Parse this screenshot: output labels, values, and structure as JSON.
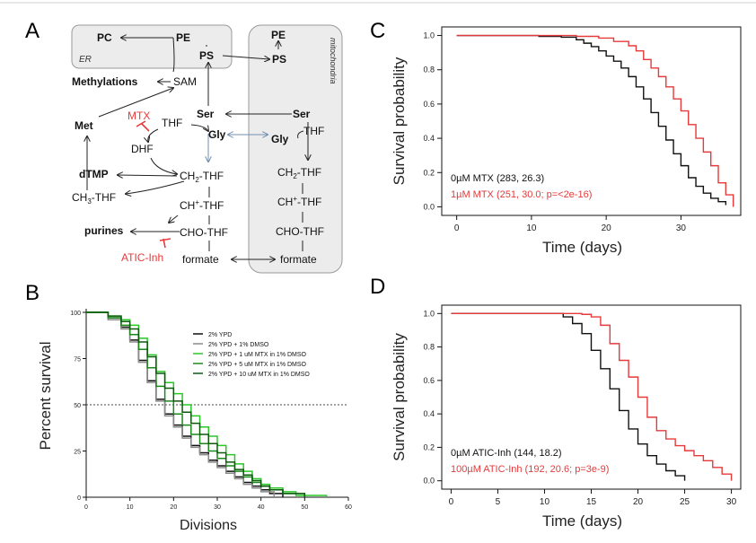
{
  "colors": {
    "black": "#111111",
    "red": "#e53a3a",
    "grey": "#8a8a8a",
    "g1": "#28c828",
    "g2": "#1a8a1a",
    "g3": "#0d5a0d",
    "box": "#ececec",
    "boxStroke": "#9a9a9a",
    "arrow": "#222222",
    "blue": "#6f8fb0"
  },
  "panels": {
    "a": "A",
    "b": "B",
    "c": "C",
    "d": "D"
  },
  "pathway": {
    "er_label": "ER",
    "mito_label": "mitochondria",
    "pc": "PC",
    "pe_er": "PE",
    "ps_er": "PS",
    "pe_mito": "PE",
    "ps_mito": "PS",
    "methylations": "Methylations",
    "sam": "SAM",
    "met": "Met",
    "mtx": "MTX",
    "thf": "THF",
    "dhf": "DHF",
    "ser": "Ser",
    "ser_mito": "Ser",
    "gly": "Gly",
    "gly_mito": "Gly",
    "thf_mito": "THF",
    "dtmp": "dTMP",
    "ch2thf_main": "CH",
    "ch2thf_sub": "2",
    "ch2thf_tail": "-THF",
    "ch3thf_main": "CH",
    "ch3thf_sub": "3",
    "ch3thf_tail": "-THF",
    "chplus_main": "CH",
    "chplus_sup": "+",
    "chplus_tail": "-THF",
    "chothf": "CHO-THF",
    "purines": "purines",
    "aticinh": "ATIC-Inh",
    "formate": "formate",
    "formate_mito": "formate",
    "m_ch2_main": "CH",
    "m_ch2_sub": "2",
    "m_ch2_tail": "-THF",
    "m_chp_main": "CH",
    "m_chp_sup": "+",
    "m_chp_tail": "-THF",
    "m_cho": "CHO-THF"
  },
  "chart_data": [
    {
      "id": "C",
      "type": "line",
      "xlabel": "Time (days)",
      "ylabel": "Survival probability",
      "xlim": [
        -2,
        38
      ],
      "ylim": [
        -0.05,
        1.05
      ],
      "xticks": [
        0,
        10,
        20,
        30
      ],
      "yticks": [
        0.0,
        0.2,
        0.4,
        0.6,
        0.8,
        1.0
      ],
      "yticklabels": [
        "0.0",
        "0.2",
        "0.4",
        "0.6",
        "0.8",
        "1.0"
      ],
      "legend": [
        "0µM MTX (283, 26.3)",
        "1µM MTX (251, 30.0; p=<2e-16)"
      ],
      "series": [
        {
          "name": "0µM MTX",
          "color": "black",
          "points": [
            [
              0,
              1.0
            ],
            [
              8,
              1.0
            ],
            [
              11,
              0.995
            ],
            [
              14,
              0.99
            ],
            [
              16,
              0.975
            ],
            [
              17,
              0.955
            ],
            [
              18,
              0.935
            ],
            [
              19,
              0.91
            ],
            [
              20,
              0.88
            ],
            [
              21,
              0.85
            ],
            [
              22,
              0.81
            ],
            [
              23,
              0.76
            ],
            [
              24,
              0.7
            ],
            [
              25,
              0.63
            ],
            [
              26,
              0.55
            ],
            [
              27,
              0.47
            ],
            [
              28,
              0.39
            ],
            [
              29,
              0.31
            ],
            [
              30,
              0.24
            ],
            [
              31,
              0.17
            ],
            [
              32,
              0.12
            ],
            [
              33,
              0.08
            ],
            [
              34,
              0.05
            ],
            [
              35,
              0.03
            ],
            [
              36,
              0.01
            ]
          ]
        },
        {
          "name": "1µM MTX",
          "color": "red",
          "points": [
            [
              0,
              1.0
            ],
            [
              12,
              1.0
            ],
            [
              16,
              0.995
            ],
            [
              19,
              0.985
            ],
            [
              21,
              0.965
            ],
            [
              23,
              0.94
            ],
            [
              24,
              0.91
            ],
            [
              25,
              0.86
            ],
            [
              26,
              0.81
            ],
            [
              27,
              0.76
            ],
            [
              28,
              0.7
            ],
            [
              29,
              0.63
            ],
            [
              30,
              0.56
            ],
            [
              31,
              0.48
            ],
            [
              32,
              0.4
            ],
            [
              33,
              0.32
            ],
            [
              34,
              0.24
            ],
            [
              35,
              0.14
            ],
            [
              36,
              0.07
            ],
            [
              37,
              0.0
            ]
          ]
        }
      ]
    },
    {
      "id": "D",
      "type": "line",
      "xlabel": "Time (days)",
      "ylabel": "Survival probability",
      "xlim": [
        -1,
        31
      ],
      "ylim": [
        -0.05,
        1.05
      ],
      "xticks": [
        0,
        5,
        10,
        15,
        20,
        25,
        30
      ],
      "yticks": [
        0.0,
        0.2,
        0.4,
        0.6,
        0.8,
        1.0
      ],
      "yticklabels": [
        "0.0",
        "0.2",
        "0.4",
        "0.6",
        "0.8",
        "1.0"
      ],
      "legend": [
        "0µM ATIC-Inh (144, 18.2)",
        "100µM ATIC-Inh (192, 20.6; p=3e-9)"
      ],
      "series": [
        {
          "name": "0µM ATIC-Inh",
          "color": "black",
          "points": [
            [
              0,
              1.0
            ],
            [
              11,
              1.0
            ],
            [
              12,
              0.98
            ],
            [
              13,
              0.94
            ],
            [
              14,
              0.88
            ],
            [
              15,
              0.78
            ],
            [
              16,
              0.67
            ],
            [
              17,
              0.55
            ],
            [
              18,
              0.42
            ],
            [
              19,
              0.31
            ],
            [
              20,
              0.22
            ],
            [
              21,
              0.15
            ],
            [
              22,
              0.1
            ],
            [
              23,
              0.06
            ],
            [
              24,
              0.03
            ],
            [
              25,
              0.0
            ]
          ]
        },
        {
          "name": "100µM ATIC-Inh",
          "color": "red",
          "points": [
            [
              0,
              1.0
            ],
            [
              12,
              1.0
            ],
            [
              14,
              0.995
            ],
            [
              15,
              0.98
            ],
            [
              16,
              0.93
            ],
            [
              17,
              0.82
            ],
            [
              18,
              0.72
            ],
            [
              19,
              0.62
            ],
            [
              20,
              0.5
            ],
            [
              21,
              0.38
            ],
            [
              22,
              0.3
            ],
            [
              23,
              0.25
            ],
            [
              24,
              0.21
            ],
            [
              25,
              0.18
            ],
            [
              26,
              0.15
            ],
            [
              27,
              0.12
            ],
            [
              28,
              0.08
            ],
            [
              29,
              0.04
            ],
            [
              30,
              0.0
            ]
          ]
        }
      ]
    },
    {
      "id": "B",
      "type": "line",
      "xlabel": "Divisions",
      "ylabel": "Percent survival",
      "xlim": [
        0,
        60
      ],
      "ylim": [
        0,
        100
      ],
      "xticks": [
        0,
        10,
        20,
        30,
        40,
        50,
        60
      ],
      "yticks": [
        0,
        25,
        50,
        75,
        100
      ],
      "hline": 50,
      "legend": [
        "2% YPD",
        "2% YPD + 1% DMSO",
        "2% YPD + 1 uM MTX in 1% DMSO",
        "2% YPD + 5 uM MTX in 1% DMSO",
        "2% YPD + 10 uM MTX in 1% DMSO"
      ],
      "series": [
        {
          "name": "2% YPD",
          "color": "black",
          "points": [
            [
              0,
              100
            ],
            [
              5,
              97
            ],
            [
              8,
              92
            ],
            [
              10,
              85
            ],
            [
              12,
              74
            ],
            [
              14,
              63
            ],
            [
              16,
              53
            ],
            [
              18,
              45
            ],
            [
              20,
              39
            ],
            [
              22,
              33
            ],
            [
              24,
              28
            ],
            [
              26,
              24
            ],
            [
              28,
              20
            ],
            [
              30,
              17
            ],
            [
              32,
              14
            ],
            [
              34,
              11
            ],
            [
              36,
              8
            ],
            [
              38,
              6
            ],
            [
              40,
              4
            ],
            [
              42,
              2
            ],
            [
              45,
              0
            ]
          ]
        },
        {
          "name": "2% YPD + 1% DMSO",
          "color": "grey",
          "points": [
            [
              0,
              100
            ],
            [
              5,
              96
            ],
            [
              8,
              91
            ],
            [
              10,
              84
            ],
            [
              12,
              73
            ],
            [
              14,
              62
            ],
            [
              16,
              52
            ],
            [
              18,
              44
            ],
            [
              20,
              38
            ],
            [
              22,
              32
            ],
            [
              24,
              27
            ],
            [
              26,
              23
            ],
            [
              28,
              19
            ],
            [
              30,
              16
            ],
            [
              32,
              13
            ],
            [
              34,
              10
            ],
            [
              36,
              7
            ],
            [
              38,
              5
            ],
            [
              40,
              3
            ],
            [
              43,
              0
            ]
          ]
        },
        {
          "name": "2% YPD + 1 uM MTX in 1% DMSO",
          "color": "g1",
          "points": [
            [
              0,
              100
            ],
            [
              5,
              98
            ],
            [
              8,
              96
            ],
            [
              10,
              93
            ],
            [
              12,
              86
            ],
            [
              14,
              77
            ],
            [
              16,
              68
            ],
            [
              18,
              62
            ],
            [
              20,
              56
            ],
            [
              22,
              50
            ],
            [
              24,
              44
            ],
            [
              26,
              38
            ],
            [
              28,
              33
            ],
            [
              30,
              28
            ],
            [
              32,
              23
            ],
            [
              34,
              18
            ],
            [
              36,
              14
            ],
            [
              38,
              10
            ],
            [
              40,
              7
            ],
            [
              42,
              5
            ],
            [
              45,
              3
            ],
            [
              48,
              1
            ],
            [
              55,
              0
            ]
          ]
        },
        {
          "name": "2% YPD + 5 uM MTX in 1% DMSO",
          "color": "g2",
          "points": [
            [
              0,
              100
            ],
            [
              5,
              97
            ],
            [
              8,
              93
            ],
            [
              10,
              88
            ],
            [
              12,
              80
            ],
            [
              14,
              70
            ],
            [
              16,
              60
            ],
            [
              18,
              52
            ],
            [
              20,
              45
            ],
            [
              22,
              39
            ],
            [
              24,
              34
            ],
            [
              26,
              29
            ],
            [
              28,
              25
            ],
            [
              30,
              21
            ],
            [
              32,
              17
            ],
            [
              34,
              14
            ],
            [
              36,
              11
            ],
            [
              38,
              8
            ],
            [
              40,
              6
            ],
            [
              42,
              4
            ],
            [
              45,
              2
            ],
            [
              50,
              0
            ]
          ]
        },
        {
          "name": "2% YPD + 10 uM MTX in 1% DMSO",
          "color": "g3",
          "points": [
            [
              0,
              100
            ],
            [
              5,
              98
            ],
            [
              8,
              95
            ],
            [
              10,
              91
            ],
            [
              12,
              84
            ],
            [
              14,
              76
            ],
            [
              16,
              67
            ],
            [
              18,
              59
            ],
            [
              20,
              52
            ],
            [
              22,
              46
            ],
            [
              24,
              40
            ],
            [
              26,
              34
            ],
            [
              28,
              29
            ],
            [
              30,
              24
            ],
            [
              32,
              19
            ],
            [
              34,
              15
            ],
            [
              36,
              12
            ],
            [
              38,
              9
            ],
            [
              40,
              6
            ],
            [
              42,
              4
            ],
            [
              45,
              2
            ],
            [
              50,
              0
            ]
          ]
        }
      ]
    }
  ]
}
